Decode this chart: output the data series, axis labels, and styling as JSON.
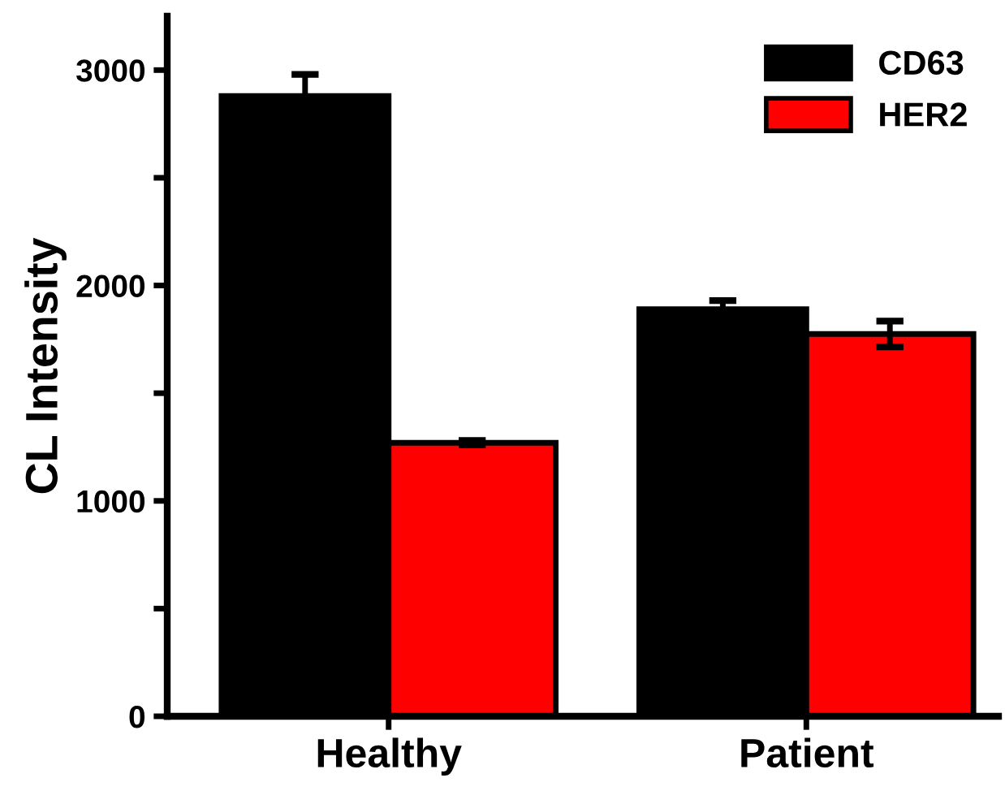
{
  "chart_data": {
    "type": "bar",
    "ylabel": "CL Intensity",
    "categories": [
      "Healthy",
      "Patient"
    ],
    "series": [
      {
        "name": "CD63",
        "color": "#000000",
        "values": [
          2880,
          1890
        ],
        "errors": [
          100,
          40
        ]
      },
      {
        "name": "HER2",
        "color": "#ff0000",
        "values": [
          1270,
          1775
        ],
        "errors": [
          10,
          60
        ]
      }
    ],
    "ylim": [
      0,
      3250
    ],
    "yticks": [
      0,
      {
        "value": 500,
        "label": null
      },
      1000,
      {
        "value": 1500,
        "label": null
      },
      2000,
      {
        "value": 2500,
        "label": null
      },
      3000
    ],
    "legend": "top right",
    "grid": false
  }
}
